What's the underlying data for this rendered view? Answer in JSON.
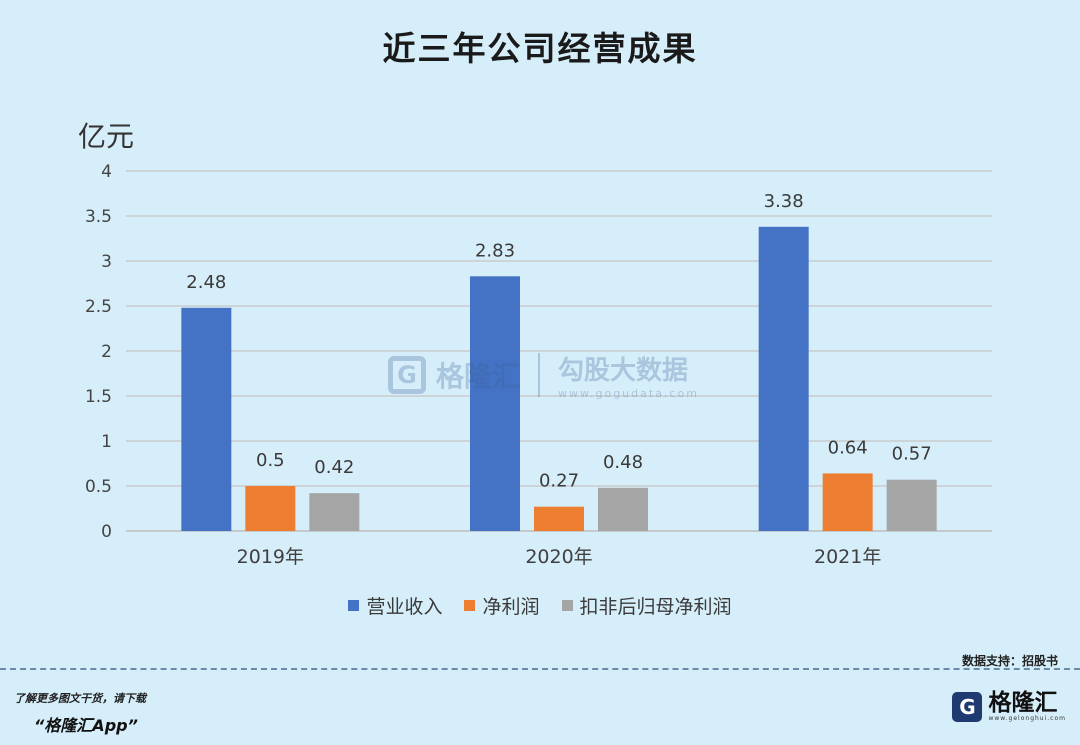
{
  "chart_data": {
    "type": "bar",
    "title": "近三年公司经营成果",
    "ylabel": "亿元",
    "categories": [
      "2019年",
      "2020年",
      "2021年"
    ],
    "series": [
      {
        "name": "营业收入",
        "values": [
          2.48,
          2.83,
          3.38
        ],
        "color": "#4472c4"
      },
      {
        "name": "净利润",
        "values": [
          0.5,
          0.27,
          0.64
        ],
        "color": "#ed7d31"
      },
      {
        "name": "扣非后归母净利润",
        "values": [
          0.42,
          0.48,
          0.57
        ],
        "color": "#a5a5a5"
      }
    ],
    "data_labels": [
      [
        "2.48",
        "0.5",
        "0.42"
      ],
      [
        "2.83",
        "0.27",
        "0.48"
      ],
      [
        "3.38",
        "0.64",
        "0.57"
      ]
    ],
    "yticks": [
      "0",
      "0.5",
      "1",
      "1.5",
      "2",
      "2.5",
      "3",
      "3.5",
      "4"
    ],
    "ylim": [
      0,
      4
    ],
    "grid": true,
    "legend_position": "bottom"
  },
  "watermark": {
    "brand": "格隆汇",
    "name": "勾股大数据",
    "url": "www.gogudata.com"
  },
  "footer": {
    "source": "数据支持：招股书",
    "promo_line1": "了解更多图文干货，请下载",
    "promo_line2": "“格隆汇App”",
    "logo_name": "格隆汇",
    "logo_url": "www.gelonghui.com"
  }
}
